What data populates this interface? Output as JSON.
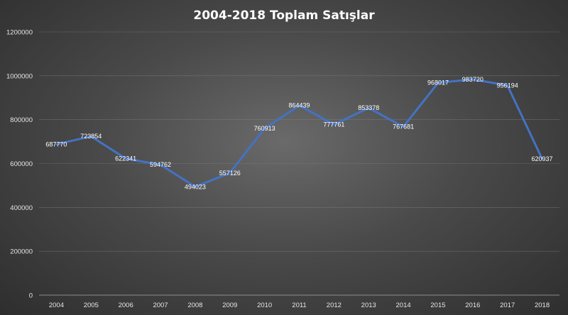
{
  "chart_data": {
    "type": "line",
    "title": "2004-2018 Toplam  Satışlar",
    "xlabel": "",
    "ylabel": "",
    "categories": [
      "2004",
      "2005",
      "2006",
      "2007",
      "2008",
      "2009",
      "2010",
      "2011",
      "2012",
      "2013",
      "2014",
      "2015",
      "2016",
      "2017",
      "2018"
    ],
    "series": [
      {
        "values": [
          687770,
          723854,
          622341,
          594762,
          494023,
          557126,
          760913,
          864439,
          777761,
          853378,
          767681,
          968017,
          983720,
          956194,
          620937
        ],
        "labels": [
          "687770",
          "723854",
          "622341",
          "594762",
          "494023",
          "557126",
          "760913",
          "864439",
          "777761",
          "853378",
          "767681",
          "968017",
          "983720",
          "956194",
          "620937"
        ]
      }
    ],
    "ylim": [
      0,
      1200000
    ],
    "yticks": [
      "0",
      "200000",
      "400000",
      "600000",
      "800000",
      "1000000",
      "1200000"
    ],
    "grid": true,
    "legend": "none",
    "colors": {
      "series": "#4472c4",
      "background": "#3c3c3c"
    }
  }
}
